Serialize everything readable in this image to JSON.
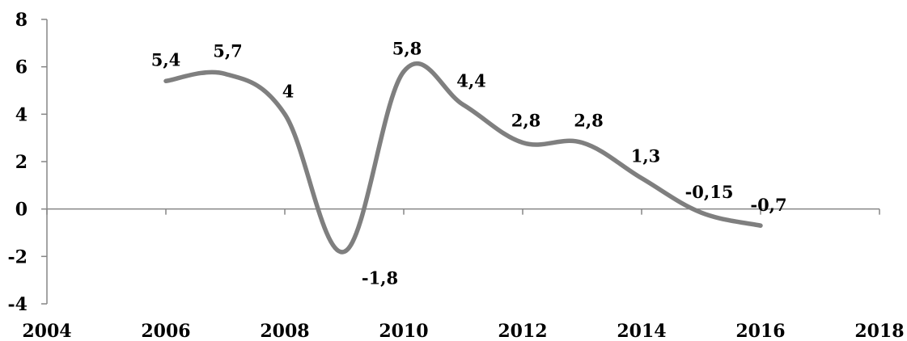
{
  "chart_data": {
    "type": "line",
    "title": "",
    "xlabel": "",
    "ylabel": "",
    "x_ticks": [
      "2004",
      "2006",
      "2008",
      "2010",
      "2012",
      "2014",
      "2016",
      "2018"
    ],
    "y_ticks": [
      "8",
      "6",
      "4",
      "2",
      "0",
      "-2",
      "-4"
    ],
    "xlim": [
      2004,
      2018
    ],
    "ylim": [
      -4,
      8
    ],
    "grid": false,
    "legend": "none",
    "series": [
      {
        "x": [
          2006,
          2007,
          2008,
          2009,
          2010,
          2011,
          2012,
          2013,
          2014,
          2015,
          2016
        ],
        "y": [
          5.4,
          5.7,
          4,
          -1.8,
          5.8,
          4.4,
          2.8,
          2.8,
          1.3,
          -0.15,
          -0.7
        ],
        "labels": [
          "5,4",
          "5,7",
          "4",
          "-1,8",
          "5,8",
          "4,4",
          "2,8",
          "2,8",
          "1,3",
          "-0,15",
          "-0,7"
        ],
        "color": "#7f7f7f"
      }
    ]
  }
}
